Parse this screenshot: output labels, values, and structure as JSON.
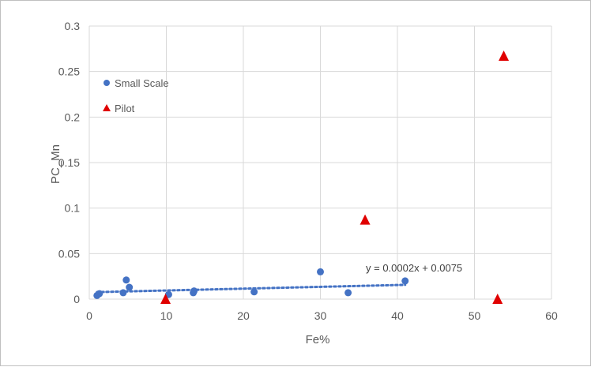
{
  "chart_data": {
    "type": "scatter",
    "xlabel": "Fe%",
    "ylabel": "PC_Mn",
    "xlim": [
      0,
      60
    ],
    "ylim": [
      0,
      0.3
    ],
    "x_ticks": [
      "0",
      "10",
      "20",
      "30",
      "40",
      "50",
      "60"
    ],
    "y_ticks": [
      "0",
      "0.05",
      "0.1",
      "0.15",
      "0.2",
      "0.25",
      "0.3"
    ],
    "grid": true,
    "legend_position": "upper-left",
    "series": [
      {
        "name": "Small Scale",
        "marker": "circle",
        "color": "#4472c4",
        "points": [
          [
            1.0,
            0.004
          ],
          [
            1.3,
            0.006
          ],
          [
            4.4,
            0.007
          ],
          [
            4.8,
            0.021
          ],
          [
            5.2,
            0.013
          ],
          [
            10.3,
            0.005
          ],
          [
            13.5,
            0.007
          ],
          [
            13.6,
            0.009
          ],
          [
            21.4,
            0.008
          ],
          [
            30.0,
            0.03
          ],
          [
            33.6,
            0.007
          ],
          [
            41.0,
            0.02
          ]
        ]
      },
      {
        "name": "Pilot",
        "marker": "triangle",
        "color": "#e00000",
        "points": [
          [
            9.9,
            0.0
          ],
          [
            35.8,
            0.087
          ],
          [
            53.0,
            0.0
          ],
          [
            53.8,
            0.267
          ]
        ]
      }
    ],
    "trendline": {
      "series": "Small Scale",
      "style": "dotted",
      "color": "#4472c4",
      "slope": 0.0002,
      "intercept": 0.0075,
      "x_range": [
        1.0,
        41.0
      ],
      "label": "y = 0.0002x  + 0.0075"
    }
  }
}
